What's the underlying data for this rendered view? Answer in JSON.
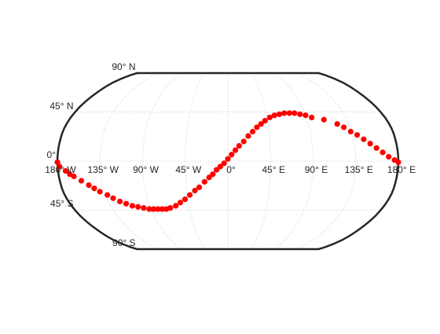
{
  "chart_data": {
    "type": "scatter",
    "projection": "robinson",
    "frame": true,
    "grid": true,
    "frame_color": "#262626",
    "marker_color": "#ff0000",
    "grid_color": "#b8b8b8",
    "parallels": [
      -90,
      -45,
      0,
      45,
      90
    ],
    "meridians": [
      -180,
      -135,
      -90,
      -45,
      0,
      45,
      90,
      135,
      180
    ],
    "lat_labels": [
      {
        "value": 90,
        "text": "90° N"
      },
      {
        "value": 45,
        "text": "45° N"
      },
      {
        "value": 0,
        "text": "0°"
      },
      {
        "value": -45,
        "text": "45° S"
      },
      {
        "value": -90,
        "text": "90° S"
      }
    ],
    "lon_labels": [
      {
        "value": -180,
        "text": "180° W"
      },
      {
        "value": -135,
        "text": "135° W"
      },
      {
        "value": -90,
        "text": "90° W"
      },
      {
        "value": -45,
        "text": "45° W"
      },
      {
        "value": 0,
        "text": "0°"
      },
      {
        "value": 45,
        "text": "45° E"
      },
      {
        "value": 90,
        "text": "90° E"
      },
      {
        "value": 135,
        "text": "135° E"
      },
      {
        "value": 180,
        "text": "180° E"
      }
    ],
    "points": [
      {
        "lon": -180,
        "lat": -1
      },
      {
        "lon": -178,
        "lat": -5
      },
      {
        "lon": -172,
        "lat": -9
      },
      {
        "lon": -168,
        "lat": -12
      },
      {
        "lon": -164,
        "lat": -14
      },
      {
        "lon": -157,
        "lat": -18
      },
      {
        "lon": -150,
        "lat": -22
      },
      {
        "lon": -145,
        "lat": -25
      },
      {
        "lon": -140,
        "lat": -28
      },
      {
        "lon": -133,
        "lat": -31
      },
      {
        "lon": -128,
        "lat": -34
      },
      {
        "lon": -122,
        "lat": -37
      },
      {
        "lon": -116,
        "lat": -39
      },
      {
        "lon": -110,
        "lat": -41
      },
      {
        "lon": -104,
        "lat": -42
      },
      {
        "lon": -98,
        "lat": -43
      },
      {
        "lon": -92,
        "lat": -44
      },
      {
        "lon": -87,
        "lat": -44
      },
      {
        "lon": -82,
        "lat": -44
      },
      {
        "lon": -77,
        "lat": -44
      },
      {
        "lon": -72,
        "lat": -44
      },
      {
        "lon": -67,
        "lat": -43
      },
      {
        "lon": -60,
        "lat": -41
      },
      {
        "lon": -54,
        "lat": -38
      },
      {
        "lon": -48,
        "lat": -35
      },
      {
        "lon": -42,
        "lat": -31
      },
      {
        "lon": -36,
        "lat": -27
      },
      {
        "lon": -31,
        "lat": -24
      },
      {
        "lon": -25,
        "lat": -19
      },
      {
        "lon": -20,
        "lat": -15
      },
      {
        "lon": -16,
        "lat": -12
      },
      {
        "lon": -12,
        "lat": -8
      },
      {
        "lon": -8,
        "lat": -5
      },
      {
        "lon": -4,
        "lat": -2
      },
      {
        "lon": 0,
        "lat": 2
      },
      {
        "lon": 4,
        "lat": 6
      },
      {
        "lon": 8,
        "lat": 10
      },
      {
        "lon": 12,
        "lat": 14
      },
      {
        "lon": 17,
        "lat": 18
      },
      {
        "lon": 22,
        "lat": 23
      },
      {
        "lon": 27,
        "lat": 27
      },
      {
        "lon": 32,
        "lat": 31
      },
      {
        "lon": 37,
        "lat": 34
      },
      {
        "lon": 42,
        "lat": 37
      },
      {
        "lon": 48,
        "lat": 40
      },
      {
        "lon": 54,
        "lat": 42
      },
      {
        "lon": 60,
        "lat": 43
      },
      {
        "lon": 66,
        "lat": 44
      },
      {
        "lon": 72,
        "lat": 44
      },
      {
        "lon": 78,
        "lat": 44
      },
      {
        "lon": 84,
        "lat": 43
      },
      {
        "lon": 90,
        "lat": 42
      },
      {
        "lon": 96,
        "lat": 40
      },
      {
        "lon": 109,
        "lat": 38
      },
      {
        "lon": 122,
        "lat": 34
      },
      {
        "lon": 128,
        "lat": 31
      },
      {
        "lon": 134,
        "lat": 27
      },
      {
        "lon": 140,
        "lat": 24
      },
      {
        "lon": 146,
        "lat": 20
      },
      {
        "lon": 152,
        "lat": 16
      },
      {
        "lon": 158,
        "lat": 12
      },
      {
        "lon": 164,
        "lat": 8
      },
      {
        "lon": 170,
        "lat": 4
      },
      {
        "lon": 176,
        "lat": 1
      },
      {
        "lon": 180,
        "lat": -1
      }
    ]
  }
}
